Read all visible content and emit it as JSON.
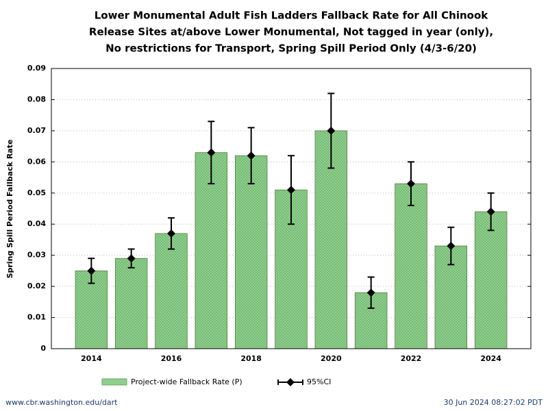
{
  "chart_data": {
    "type": "bar",
    "title": [
      "Lower Monumental Adult Fish Ladders Fallback Rate for All Chinook",
      "Release Sites at/above Lower Monumental, Not tagged in year (only),",
      "No restrictions for Transport, Spring Spill Period Only (4/3-6/20)"
    ],
    "y_label": "Spring Spill Period Fallback Rate",
    "x": [
      2014,
      2015,
      2016,
      2017,
      2018,
      2019,
      2020,
      2021,
      2022,
      2023,
      2024
    ],
    "series": [
      {
        "name": "Project-wide Fallback Rate (P)",
        "color": "#8fcf8f",
        "values": [
          0.025,
          0.029,
          0.037,
          0.063,
          0.062,
          0.051,
          0.07,
          0.018,
          0.053,
          0.033,
          0.044
        ]
      },
      {
        "name": "95%CI",
        "color": "#000000",
        "lower": [
          0.021,
          0.026,
          0.032,
          0.053,
          0.053,
          0.04,
          0.058,
          0.013,
          0.046,
          0.027,
          0.038
        ],
        "upper": [
          0.029,
          0.032,
          0.042,
          0.073,
          0.071,
          0.062,
          0.082,
          0.023,
          0.06,
          0.039,
          0.05
        ]
      }
    ],
    "xlim": [
      2013,
      2025
    ],
    "xticks": [
      2014,
      2016,
      2018,
      2020,
      2022,
      2024
    ],
    "ylim": [
      0,
      0.09
    ],
    "yticks": [
      0,
      0.01,
      0.02,
      0.03,
      0.04,
      0.05,
      0.06,
      0.07,
      0.08,
      0.09
    ],
    "grid": true
  },
  "footer": {
    "left": "www.cbr.washington.edu/dart",
    "right": "30 Jun 2024 08:27:02 PDT"
  }
}
